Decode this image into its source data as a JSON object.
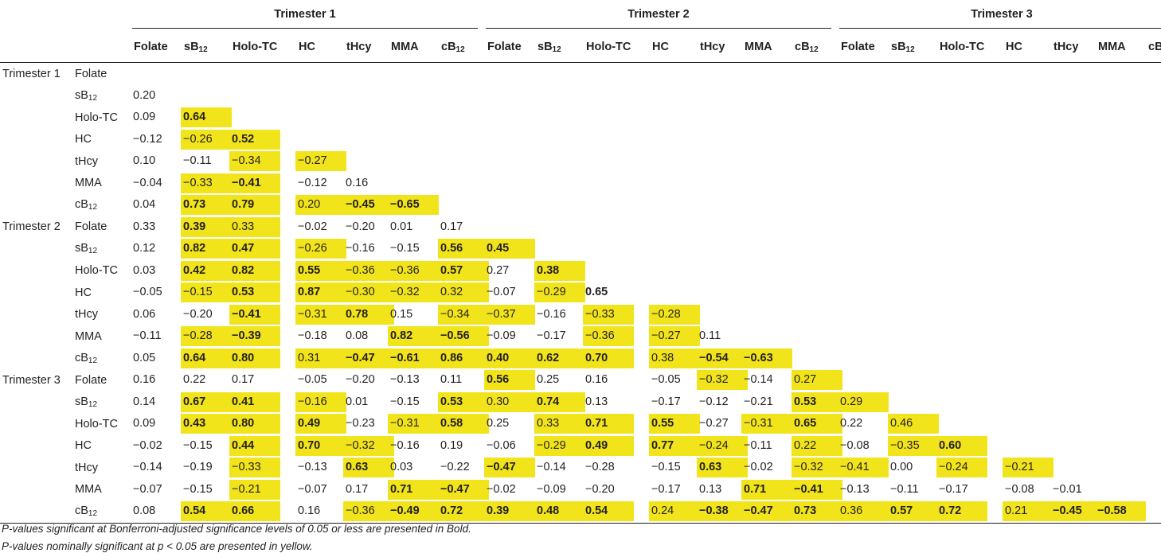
{
  "table": {
    "trimesters": [
      "Trimester 1",
      "Trimester 2",
      "Trimester 3"
    ],
    "variables": [
      "Folate",
      "sB12",
      "Holo-TC",
      "HC",
      "tHcy",
      "MMA",
      "cB12"
    ],
    "colors": {
      "nominal_highlight": "#f2e41a",
      "text": "#231f20"
    },
    "rows": [
      {
        "group": "Trimester 1",
        "var": "Folate",
        "cells": []
      },
      {
        "group": "",
        "var": "sB12",
        "cells": [
          [
            "0.20",
            0,
            0
          ]
        ]
      },
      {
        "group": "",
        "var": "Holo-TC",
        "cells": [
          [
            "0.09",
            0,
            0
          ],
          [
            "0.64",
            1,
            1
          ]
        ]
      },
      {
        "group": "",
        "var": "HC",
        "cells": [
          [
            "−0.12",
            0,
            0
          ],
          [
            "−0.26",
            1,
            0
          ],
          [
            "0.52",
            1,
            1
          ]
        ]
      },
      {
        "group": "",
        "var": "tHcy",
        "cells": [
          [
            "0.10",
            0,
            0
          ],
          [
            "−0.11",
            0,
            0
          ],
          [
            "−0.34",
            1,
            0
          ],
          [
            "−0.27",
            1,
            0
          ]
        ]
      },
      {
        "group": "",
        "var": "MMA",
        "cells": [
          [
            "−0.04",
            0,
            0
          ],
          [
            "−0.33",
            1,
            0
          ],
          [
            "−0.41",
            1,
            1
          ],
          [
            "−0.12",
            0,
            0
          ],
          [
            "0.16",
            0,
            0
          ]
        ]
      },
      {
        "group": "",
        "var": "cB12",
        "cells": [
          [
            "0.04",
            0,
            0
          ],
          [
            "0.73",
            1,
            1
          ],
          [
            "0.79",
            1,
            1
          ],
          [
            "0.20",
            1,
            0
          ],
          [
            "−0.45",
            1,
            1
          ],
          [
            "−0.65",
            1,
            1
          ]
        ]
      },
      {
        "group": "Trimester 2",
        "var": "Folate",
        "cells": [
          [
            "0.33",
            0,
            0
          ],
          [
            "0.39",
            1,
            1
          ],
          [
            "0.33",
            1,
            0
          ],
          [
            "−0.02",
            0,
            0
          ],
          [
            "−0.20",
            0,
            0
          ],
          [
            "0.01",
            0,
            0
          ],
          [
            "0.17",
            0,
            0
          ]
        ]
      },
      {
        "group": "",
        "var": "sB12",
        "cells": [
          [
            "0.12",
            0,
            0
          ],
          [
            "0.82",
            1,
            1
          ],
          [
            "0.47",
            1,
            1
          ],
          [
            "−0.26",
            1,
            0
          ],
          [
            "−0.16",
            0,
            0
          ],
          [
            "−0.15",
            0,
            0
          ],
          [
            "0.56",
            1,
            1
          ],
          [
            "0.45",
            1,
            1
          ]
        ]
      },
      {
        "group": "",
        "var": "Holo-TC",
        "cells": [
          [
            "0.03",
            0,
            0
          ],
          [
            "0.42",
            1,
            1
          ],
          [
            "0.82",
            1,
            1
          ],
          [
            "0.55",
            1,
            1
          ],
          [
            "−0.36",
            1,
            0
          ],
          [
            "−0.36",
            1,
            0
          ],
          [
            "0.57",
            1,
            1
          ],
          [
            "0.27",
            0,
            0
          ],
          [
            "0.38",
            1,
            1
          ]
        ]
      },
      {
        "group": "",
        "var": "HC",
        "cells": [
          [
            "−0.05",
            0,
            0
          ],
          [
            "−0.15",
            1,
            0
          ],
          [
            "0.53",
            1,
            1
          ],
          [
            "0.87",
            1,
            1
          ],
          [
            "−0.30",
            1,
            0
          ],
          [
            "−0.32",
            1,
            0
          ],
          [
            "0.32",
            1,
            0
          ],
          [
            "−0.07",
            0,
            0
          ],
          [
            "−0.29",
            1,
            0
          ],
          [
            "0.65",
            0,
            1
          ]
        ]
      },
      {
        "group": "",
        "var": "tHcy",
        "cells": [
          [
            "0.06",
            0,
            0
          ],
          [
            "−0.20",
            0,
            0
          ],
          [
            "−0.41",
            1,
            1
          ],
          [
            "−0.31",
            1,
            0
          ],
          [
            "0.78",
            1,
            1
          ],
          [
            "0.15",
            0,
            0
          ],
          [
            "−0.34",
            1,
            0
          ],
          [
            "−0.37",
            1,
            0
          ],
          [
            "−0.16",
            0,
            0
          ],
          [
            "−0.33",
            1,
            0
          ],
          [
            "−0.28",
            1,
            0
          ]
        ]
      },
      {
        "group": "",
        "var": "MMA",
        "cells": [
          [
            "−0.11",
            0,
            0
          ],
          [
            "−0.28",
            1,
            0
          ],
          [
            "−0.39",
            1,
            1
          ],
          [
            "−0.18",
            0,
            0
          ],
          [
            "0.08",
            0,
            0
          ],
          [
            "0.82",
            1,
            1
          ],
          [
            "−0.56",
            1,
            1
          ],
          [
            "−0.09",
            0,
            0
          ],
          [
            "−0.17",
            0,
            0
          ],
          [
            "−0.36",
            1,
            0
          ],
          [
            "−0.27",
            1,
            0
          ],
          [
            "0.11",
            0,
            0
          ]
        ]
      },
      {
        "group": "",
        "var": "cB12",
        "cells": [
          [
            "0.05",
            0,
            0
          ],
          [
            "0.64",
            1,
            1
          ],
          [
            "0.80",
            1,
            1
          ],
          [
            "0.31",
            1,
            0
          ],
          [
            "−0.47",
            1,
            1
          ],
          [
            "−0.61",
            1,
            1
          ],
          [
            "0.86",
            1,
            1
          ],
          [
            "0.40",
            1,
            1
          ],
          [
            "0.62",
            1,
            1
          ],
          [
            "0.70",
            1,
            1
          ],
          [
            "0.38",
            1,
            0
          ],
          [
            "−0.54",
            1,
            1
          ],
          [
            "−0.63",
            1,
            1
          ]
        ]
      },
      {
        "group": "Trimester 3",
        "var": "Folate",
        "cells": [
          [
            "0.16",
            0,
            0
          ],
          [
            "0.22",
            0,
            0
          ],
          [
            "0.17",
            0,
            0
          ],
          [
            "−0.05",
            0,
            0
          ],
          [
            "−0.20",
            0,
            0
          ],
          [
            "−0.13",
            0,
            0
          ],
          [
            "0.11",
            0,
            0
          ],
          [
            "0.56",
            1,
            1
          ],
          [
            "0.25",
            0,
            0
          ],
          [
            "0.16",
            0,
            0
          ],
          [
            "−0.05",
            0,
            0
          ],
          [
            "−0.32",
            1,
            0
          ],
          [
            "−0.14",
            0,
            0
          ],
          [
            "0.27",
            1,
            0
          ]
        ]
      },
      {
        "group": "",
        "var": "sB12",
        "cells": [
          [
            "0.14",
            0,
            0
          ],
          [
            "0.67",
            1,
            1
          ],
          [
            "0.41",
            1,
            1
          ],
          [
            "−0.16",
            1,
            0
          ],
          [
            "0.01",
            0,
            0
          ],
          [
            "−0.15",
            0,
            0
          ],
          [
            "0.53",
            1,
            1
          ],
          [
            "0.30",
            1,
            0
          ],
          [
            "0.74",
            1,
            1
          ],
          [
            "0.13",
            0,
            0
          ],
          [
            "−0.17",
            0,
            0
          ],
          [
            "−0.12",
            0,
            0
          ],
          [
            "−0.21",
            0,
            0
          ],
          [
            "0.53",
            1,
            1
          ],
          [
            "0.29",
            1,
            0
          ]
        ]
      },
      {
        "group": "",
        "var": "Holo-TC",
        "cells": [
          [
            "0.09",
            0,
            0
          ],
          [
            "0.43",
            1,
            1
          ],
          [
            "0.80",
            1,
            1
          ],
          [
            "0.49",
            1,
            1
          ],
          [
            "−0.23",
            0,
            0
          ],
          [
            "−0.31",
            1,
            0
          ],
          [
            "0.58",
            1,
            1
          ],
          [
            "0.25",
            0,
            0
          ],
          [
            "0.33",
            1,
            0
          ],
          [
            "0.71",
            1,
            1
          ],
          [
            "0.55",
            1,
            1
          ],
          [
            "−0.27",
            0,
            0
          ],
          [
            "−0.31",
            1,
            0
          ],
          [
            "0.65",
            1,
            1
          ],
          [
            "0.22",
            0,
            0
          ],
          [
            "0.46",
            1,
            0
          ]
        ]
      },
      {
        "group": "",
        "var": "HC",
        "cells": [
          [
            "−0.02",
            0,
            0
          ],
          [
            "−0.15",
            0,
            0
          ],
          [
            "0.44",
            1,
            1
          ],
          [
            "0.70",
            1,
            1
          ],
          [
            "−0.32",
            1,
            0
          ],
          [
            "−0.16",
            0,
            0
          ],
          [
            "0.19",
            0,
            0
          ],
          [
            "−0.06",
            0,
            0
          ],
          [
            "−0.29",
            1,
            0
          ],
          [
            "0.49",
            1,
            1
          ],
          [
            "0.77",
            1,
            1
          ],
          [
            "−0.24",
            1,
            0
          ],
          [
            "−0.11",
            0,
            0
          ],
          [
            "0.22",
            1,
            0
          ],
          [
            "−0.08",
            0,
            0
          ],
          [
            "−0.35",
            1,
            0
          ],
          [
            "0.60",
            1,
            1
          ]
        ]
      },
      {
        "group": "",
        "var": "tHcy",
        "cells": [
          [
            "−0.14",
            0,
            0
          ],
          [
            "−0.19",
            0,
            0
          ],
          [
            "−0.33",
            1,
            0
          ],
          [
            "−0.13",
            0,
            0
          ],
          [
            "0.63",
            1,
            1
          ],
          [
            "0.03",
            0,
            0
          ],
          [
            "−0.22",
            0,
            0
          ],
          [
            "−0.47",
            1,
            1
          ],
          [
            "−0.14",
            0,
            0
          ],
          [
            "−0.28",
            0,
            0
          ],
          [
            "−0.15",
            0,
            0
          ],
          [
            "0.63",
            1,
            1
          ],
          [
            "−0.02",
            0,
            0
          ],
          [
            "−0.32",
            1,
            0
          ],
          [
            "−0.41",
            1,
            0
          ],
          [
            "0.00",
            0,
            0
          ],
          [
            "−0.24",
            1,
            0
          ],
          [
            "−0.21",
            1,
            0
          ]
        ]
      },
      {
        "group": "",
        "var": "MMA",
        "cells": [
          [
            "−0.07",
            0,
            0
          ],
          [
            "−0.15",
            0,
            0
          ],
          [
            "−0.21",
            1,
            0
          ],
          [
            "−0.07",
            0,
            0
          ],
          [
            "0.17",
            0,
            0
          ],
          [
            "0.71",
            1,
            1
          ],
          [
            "−0.47",
            1,
            1
          ],
          [
            "−0.02",
            0,
            0
          ],
          [
            "−0.09",
            0,
            0
          ],
          [
            "−0.20",
            0,
            0
          ],
          [
            "−0.17",
            0,
            0
          ],
          [
            "0.13",
            0,
            0
          ],
          [
            "0.71",
            1,
            1
          ],
          [
            "−0.41",
            1,
            1
          ],
          [
            "−0.13",
            0,
            0
          ],
          [
            "−0.11",
            0,
            0
          ],
          [
            "−0.17",
            0,
            0
          ],
          [
            "−0.08",
            0,
            0
          ],
          [
            "−0.01",
            0,
            0
          ]
        ]
      },
      {
        "group": "",
        "var": "cB12",
        "cells": [
          [
            "0.08",
            0,
            0
          ],
          [
            "0.54",
            1,
            1
          ],
          [
            "0.66",
            1,
            1
          ],
          [
            "0.16",
            0,
            0
          ],
          [
            "−0.36",
            1,
            0
          ],
          [
            "−0.49",
            1,
            1
          ],
          [
            "0.72",
            1,
            1
          ],
          [
            "0.39",
            1,
            1
          ],
          [
            "0.48",
            1,
            1
          ],
          [
            "0.54",
            1,
            1
          ],
          [
            "0.24",
            1,
            0
          ],
          [
            "−0.38",
            1,
            1
          ],
          [
            "−0.47",
            1,
            1
          ],
          [
            "0.73",
            1,
            1
          ],
          [
            "0.36",
            1,
            0
          ],
          [
            "0.57",
            1,
            1
          ],
          [
            "0.72",
            1,
            1
          ],
          [
            "0.21",
            1,
            0
          ],
          [
            "−0.45",
            1,
            1
          ],
          [
            "−0.58",
            1,
            1
          ]
        ]
      }
    ]
  },
  "notes": {
    "bold": "P-values significant at Bonferroni-adjusted significance levels of 0.05 or less are presented in Bold.",
    "yellow": "P-values nominally significant at p < 0.05 are presented in yellow."
  }
}
